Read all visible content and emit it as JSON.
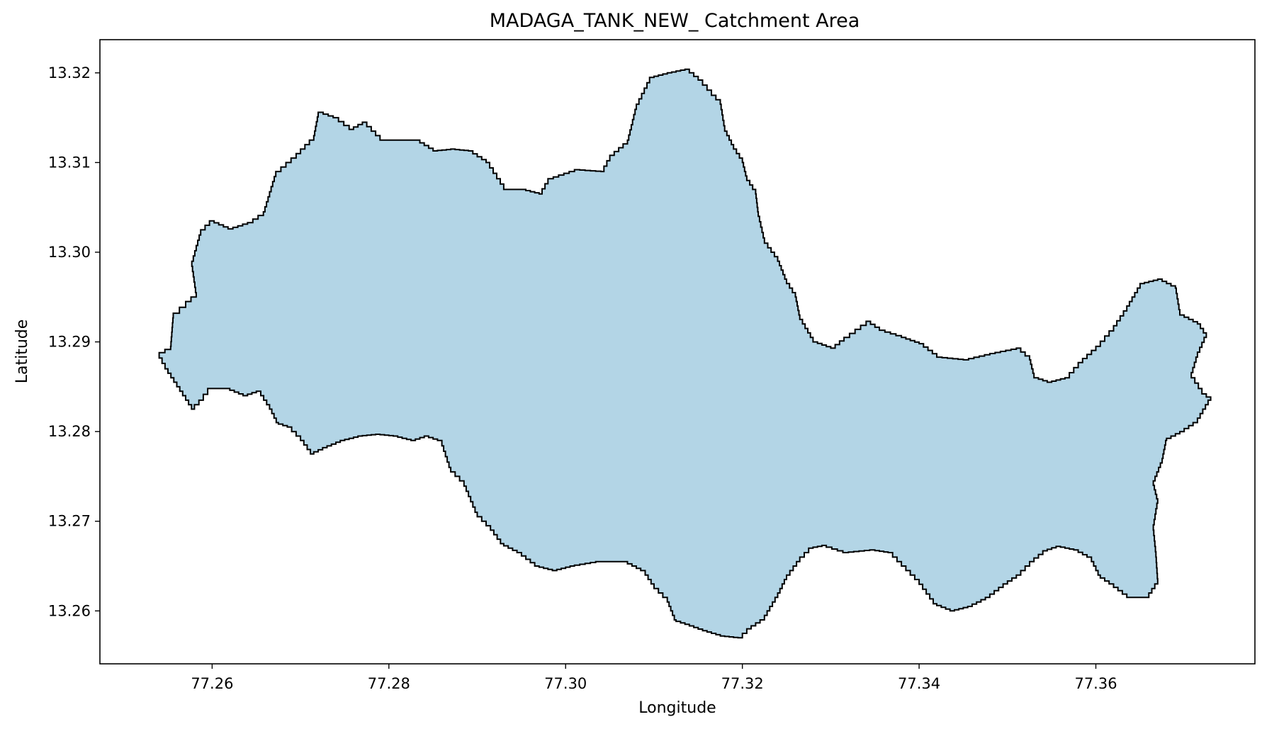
{
  "chart_data": {
    "type": "map",
    "title": "MADAGA_TANK_NEW_ Catchment Area",
    "xlabel": "Longitude",
    "ylabel": "Latitude",
    "xlim": [
      77.2473,
      77.378
    ],
    "ylim": [
      13.2541,
      13.3237
    ],
    "x_ticks": [
      {
        "value": 77.26,
        "label": "77.26"
      },
      {
        "value": 77.28,
        "label": "77.28"
      },
      {
        "value": 77.3,
        "label": "77.30"
      },
      {
        "value": 77.32,
        "label": "77.32"
      },
      {
        "value": 77.34,
        "label": "77.34"
      },
      {
        "value": 77.36,
        "label": "77.36"
      }
    ],
    "y_ticks": [
      {
        "value": 13.26,
        "label": "13.26"
      },
      {
        "value": 13.27,
        "label": "13.27"
      },
      {
        "value": 13.28,
        "label": "13.28"
      },
      {
        "value": 13.29,
        "label": "13.29"
      },
      {
        "value": 13.3,
        "label": "13.30"
      },
      {
        "value": 13.31,
        "label": "13.31"
      },
      {
        "value": 13.32,
        "label": "13.32"
      }
    ],
    "grid": false,
    "colors": {
      "fill": "#b3d5e6",
      "edge": "#000000",
      "frame": "#000000"
    },
    "boundary": [
      [
        77.254,
        13.2888
      ],
      [
        77.2553,
        13.2895
      ],
      [
        77.2556,
        13.2932
      ],
      [
        77.257,
        13.2945
      ],
      [
        77.2582,
        13.2955
      ],
      [
        77.2577,
        13.299
      ],
      [
        77.2587,
        13.3025
      ],
      [
        77.2597,
        13.3035
      ],
      [
        77.2618,
        13.3026
      ],
      [
        77.264,
        13.3033
      ],
      [
        77.2658,
        13.3045
      ],
      [
        77.2672,
        13.309
      ],
      [
        77.2695,
        13.311
      ],
      [
        77.2715,
        13.313
      ],
      [
        77.272,
        13.3156
      ],
      [
        77.2737,
        13.315
      ],
      [
        77.2755,
        13.3137
      ],
      [
        77.277,
        13.3145
      ],
      [
        77.279,
        13.3125
      ],
      [
        77.283,
        13.3125
      ],
      [
        77.285,
        13.3113
      ],
      [
        77.287,
        13.3115
      ],
      [
        77.289,
        13.3113
      ],
      [
        77.291,
        13.31
      ],
      [
        77.293,
        13.307
      ],
      [
        77.295,
        13.307
      ],
      [
        77.297,
        13.3065
      ],
      [
        77.298,
        13.3082
      ],
      [
        77.301,
        13.3092
      ],
      [
        77.304,
        13.309
      ],
      [
        77.305,
        13.3108
      ],
      [
        77.307,
        13.3125
      ],
      [
        77.308,
        13.3165
      ],
      [
        77.3095,
        13.3195
      ],
      [
        77.3115,
        13.32
      ],
      [
        77.3135,
        13.3204
      ],
      [
        77.315,
        13.3192
      ],
      [
        77.3165,
        13.3175
      ],
      [
        77.3175,
        13.3165
      ],
      [
        77.318,
        13.3135
      ],
      [
        77.319,
        13.3115
      ],
      [
        77.32,
        13.31
      ],
      [
        77.3205,
        13.308
      ],
      [
        77.3215,
        13.3065
      ],
      [
        77.3218,
        13.304
      ],
      [
        77.3225,
        13.301
      ],
      [
        77.324,
        13.299
      ],
      [
        77.325,
        13.2965
      ],
      [
        77.326,
        13.295
      ],
      [
        77.3265,
        13.2925
      ],
      [
        77.328,
        13.29
      ],
      [
        77.33,
        13.2893
      ],
      [
        77.3315,
        13.2905
      ],
      [
        77.334,
        13.2923
      ],
      [
        77.3355,
        13.2913
      ],
      [
        77.338,
        13.2905
      ],
      [
        77.34,
        13.2898
      ],
      [
        77.342,
        13.2883
      ],
      [
        77.345,
        13.288
      ],
      [
        77.348,
        13.2887
      ],
      [
        77.351,
        13.2893
      ],
      [
        77.3525,
        13.288
      ],
      [
        77.353,
        13.286
      ],
      [
        77.3545,
        13.2855
      ],
      [
        77.3565,
        13.286
      ],
      [
        77.358,
        13.2877
      ],
      [
        77.36,
        13.2895
      ],
      [
        77.362,
        13.2918
      ],
      [
        77.3635,
        13.294
      ],
      [
        77.365,
        13.2965
      ],
      [
        77.367,
        13.297
      ],
      [
        77.369,
        13.296
      ],
      [
        77.3695,
        13.293
      ],
      [
        77.3715,
        13.292
      ],
      [
        77.3725,
        13.2905
      ],
      [
        77.3715,
        13.2883
      ],
      [
        77.3708,
        13.286
      ],
      [
        77.372,
        13.2842
      ],
      [
        77.373,
        13.2835
      ],
      [
        77.3715,
        13.281
      ],
      [
        77.37,
        13.28
      ],
      [
        77.368,
        13.279
      ],
      [
        77.3675,
        13.2765
      ],
      [
        77.3665,
        13.274
      ],
      [
        77.367,
        13.272
      ],
      [
        77.3665,
        13.269
      ],
      [
        77.3668,
        13.266
      ],
      [
        77.367,
        13.263
      ],
      [
        77.366,
        13.2615
      ],
      [
        77.364,
        13.2615
      ],
      [
        77.362,
        13.263
      ],
      [
        77.3605,
        13.264
      ],
      [
        77.3595,
        13.266
      ],
      [
        77.358,
        13.2668
      ],
      [
        77.356,
        13.2672
      ],
      [
        77.3545,
        13.2667
      ],
      [
        77.353,
        13.2655
      ],
      [
        77.3515,
        13.264
      ],
      [
        77.35,
        13.263
      ],
      [
        77.348,
        13.2615
      ],
      [
        77.346,
        13.2605
      ],
      [
        77.344,
        13.26
      ],
      [
        77.342,
        13.2608
      ],
      [
        77.34,
        13.2635
      ],
      [
        77.3385,
        13.265
      ],
      [
        77.337,
        13.2665
      ],
      [
        77.335,
        13.2668
      ],
      [
        77.332,
        13.2665
      ],
      [
        77.3295,
        13.2673
      ],
      [
        77.328,
        13.267
      ],
      [
        77.3265,
        13.2655
      ],
      [
        77.325,
        13.2635
      ],
      [
        77.324,
        13.2615
      ],
      [
        77.3225,
        13.259
      ],
      [
        77.321,
        13.258
      ],
      [
        77.32,
        13.257
      ],
      [
        77.318,
        13.2572
      ],
      [
        77.316,
        13.2578
      ],
      [
        77.314,
        13.2585
      ],
      [
        77.3125,
        13.259
      ],
      [
        77.3115,
        13.2615
      ],
      [
        77.31,
        13.263
      ],
      [
        77.309,
        13.2645
      ],
      [
        77.307,
        13.2655
      ],
      [
        77.304,
        13.2655
      ],
      [
        77.301,
        13.265
      ],
      [
        77.299,
        13.2645
      ],
      [
        77.297,
        13.265
      ],
      [
        77.295,
        13.2665
      ],
      [
        77.293,
        13.2675
      ],
      [
        77.2915,
        13.2695
      ],
      [
        77.29,
        13.271
      ],
      [
        77.2885,
        13.2745
      ],
      [
        77.287,
        13.276
      ],
      [
        77.286,
        13.279
      ],
      [
        77.2845,
        13.2795
      ],
      [
        77.283,
        13.279
      ],
      [
        77.281,
        13.2795
      ],
      [
        77.279,
        13.2797
      ],
      [
        77.277,
        13.2795
      ],
      [
        77.275,
        13.279
      ],
      [
        77.273,
        13.2782
      ],
      [
        77.2715,
        13.2775
      ],
      [
        77.27,
        13.2795
      ],
      [
        77.269,
        13.2805
      ],
      [
        77.2675,
        13.281
      ],
      [
        77.2665,
        13.283
      ],
      [
        77.2655,
        13.2845
      ],
      [
        77.264,
        13.284
      ],
      [
        77.262,
        13.2848
      ],
      [
        77.26,
        13.2848
      ],
      [
        77.259,
        13.2835
      ],
      [
        77.258,
        13.2825
      ],
      [
        77.257,
        13.284
      ],
      [
        77.256,
        13.2855
      ],
      [
        77.255,
        13.287
      ]
    ]
  }
}
